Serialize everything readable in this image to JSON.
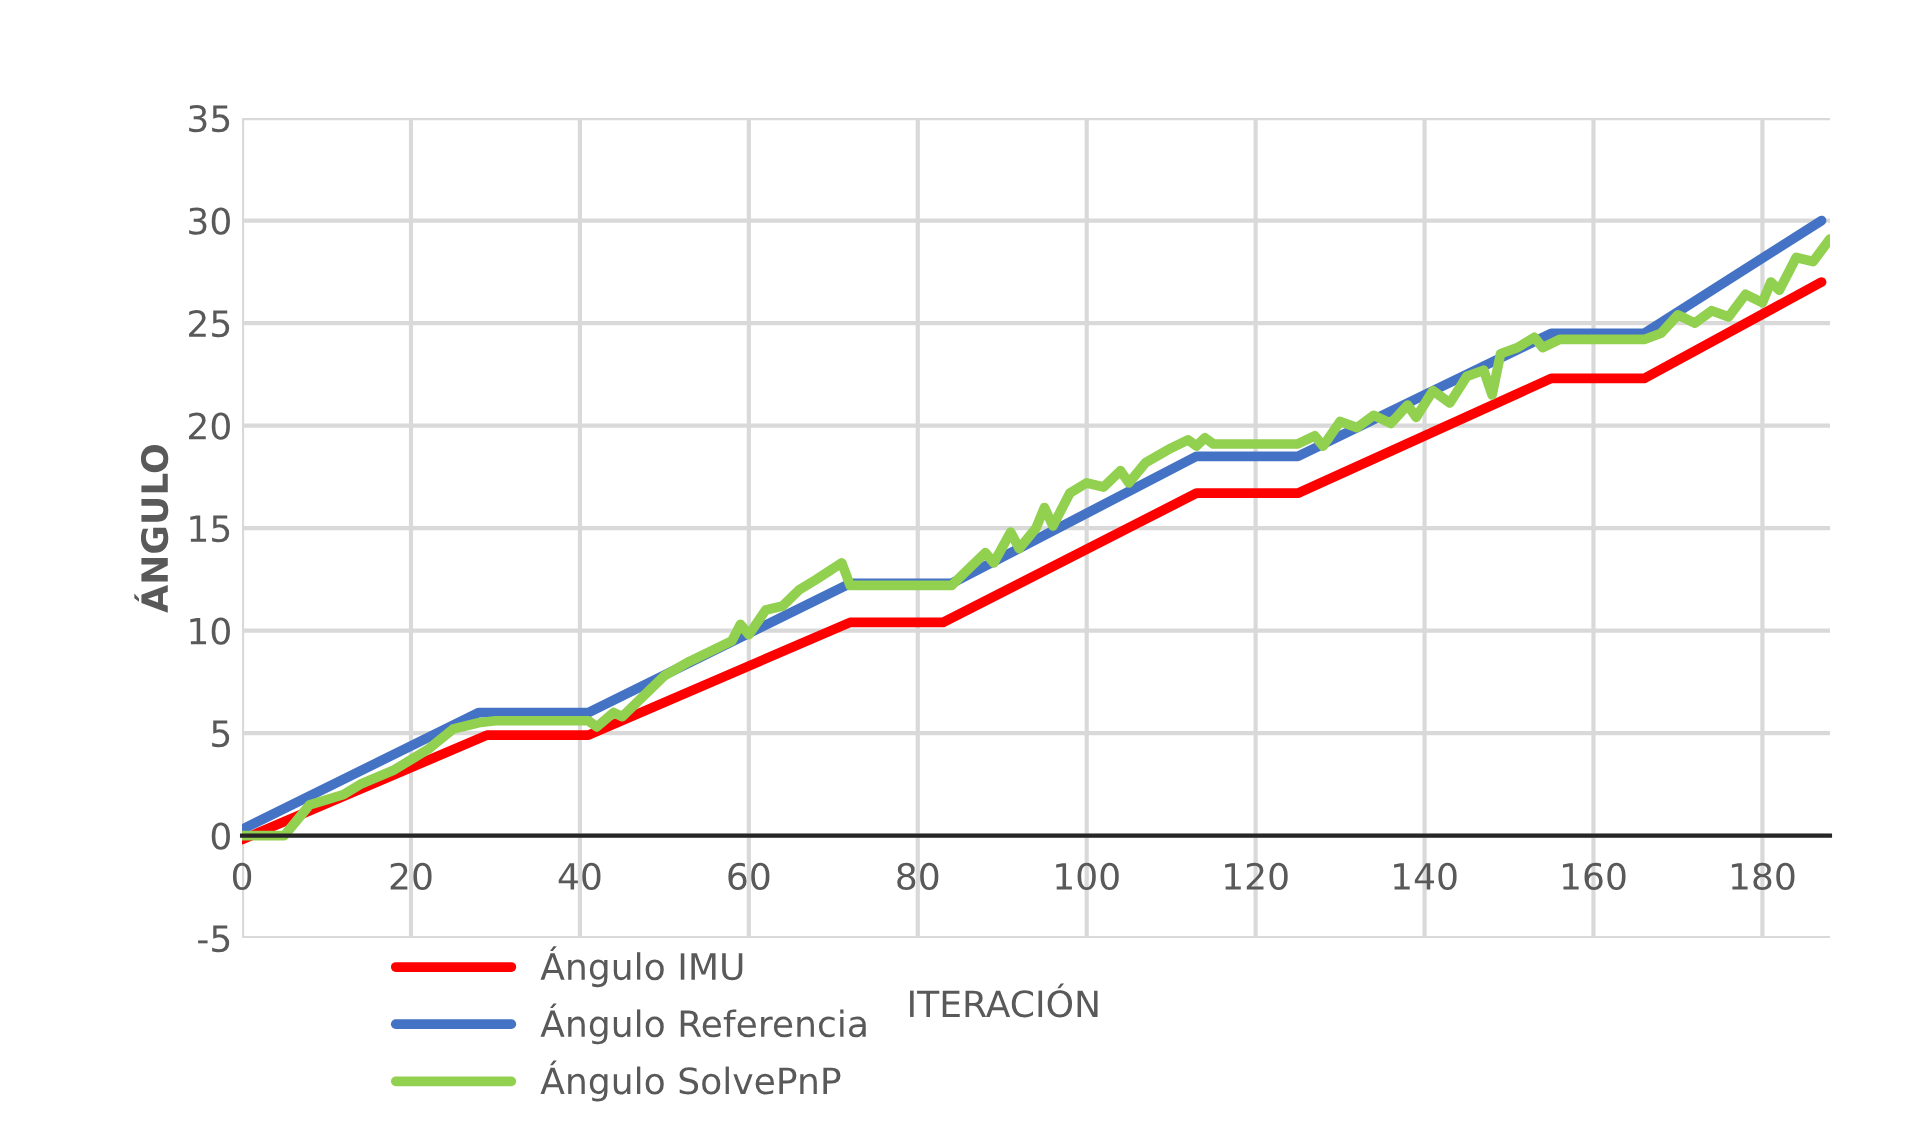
{
  "chart_data": {
    "type": "line",
    "xlabel": "ITERACIÓN",
    "ylabel": "ÁNGULO",
    "xlim": [
      0,
      188
    ],
    "xticks": [
      0,
      20,
      40,
      60,
      80,
      100,
      120,
      140,
      160,
      180
    ],
    "ylim": [
      -5,
      35
    ],
    "yticks": [
      -5,
      0,
      5,
      10,
      15,
      20,
      25,
      30,
      35
    ],
    "grid": true,
    "legend": "bottom left",
    "line_style": "solid",
    "marker": "none",
    "series": [
      {
        "name": "Ángulo IMU",
        "color": "#ff0000",
        "x": [
          0,
          29,
          41,
          72,
          83,
          113,
          125,
          155,
          166,
          187
        ],
        "values": [
          -0.2,
          4.9,
          4.9,
          10.4,
          10.4,
          16.7,
          16.7,
          22.3,
          22.3,
          27
        ]
      },
      {
        "name": "Ángulo Referencia",
        "color": "#4472c4",
        "x": [
          0,
          28,
          41,
          72,
          84,
          113,
          125,
          155,
          166,
          187
        ],
        "values": [
          0.3,
          6,
          6,
          12.3,
          12.3,
          18.5,
          18.5,
          24.5,
          24.5,
          30
        ]
      },
      {
        "name": "Ángulo SolvePnP",
        "color": "#92d050",
        "x": [
          0,
          5,
          8,
          12,
          14,
          18,
          22,
          25,
          28,
          30,
          41,
          42,
          44,
          45,
          50,
          53,
          58,
          59,
          60,
          62,
          64,
          66,
          68,
          71,
          72,
          84,
          86,
          88,
          89,
          91,
          92,
          94,
          95,
          96,
          98,
          100,
          102,
          104,
          105,
          107,
          110,
          112,
          113,
          114,
          115,
          125,
          127,
          128,
          130,
          132,
          134,
          136,
          138,
          139,
          141,
          143,
          145,
          147,
          148,
          149,
          151,
          153,
          154,
          156,
          166,
          168,
          170,
          172,
          174,
          176,
          178,
          180,
          181,
          182,
          184,
          186,
          188
        ],
        "values": [
          0,
          0,
          1.5,
          2,
          2.5,
          3.2,
          4.2,
          5.2,
          5.5,
          5.6,
          5.6,
          5.3,
          6,
          5.8,
          7.8,
          8.5,
          9.5,
          10.3,
          9.8,
          11,
          11.2,
          12,
          12.5,
          13.3,
          12.2,
          12.2,
          13,
          13.8,
          13.3,
          14.8,
          14,
          15,
          16,
          15.1,
          16.7,
          17.2,
          17,
          17.8,
          17.2,
          18.2,
          18.9,
          19.3,
          19,
          19.4,
          19.1,
          19.1,
          19.5,
          19,
          20.2,
          19.9,
          20.5,
          20.1,
          21,
          20.4,
          21.7,
          21.1,
          22.4,
          22.7,
          21.5,
          23.5,
          23.8,
          24.3,
          23.8,
          24.2,
          24.2,
          24.5,
          25.4,
          25,
          25.6,
          25.3,
          26.4,
          26,
          27,
          26.6,
          28.2,
          28,
          29.1
        ]
      }
    ]
  }
}
